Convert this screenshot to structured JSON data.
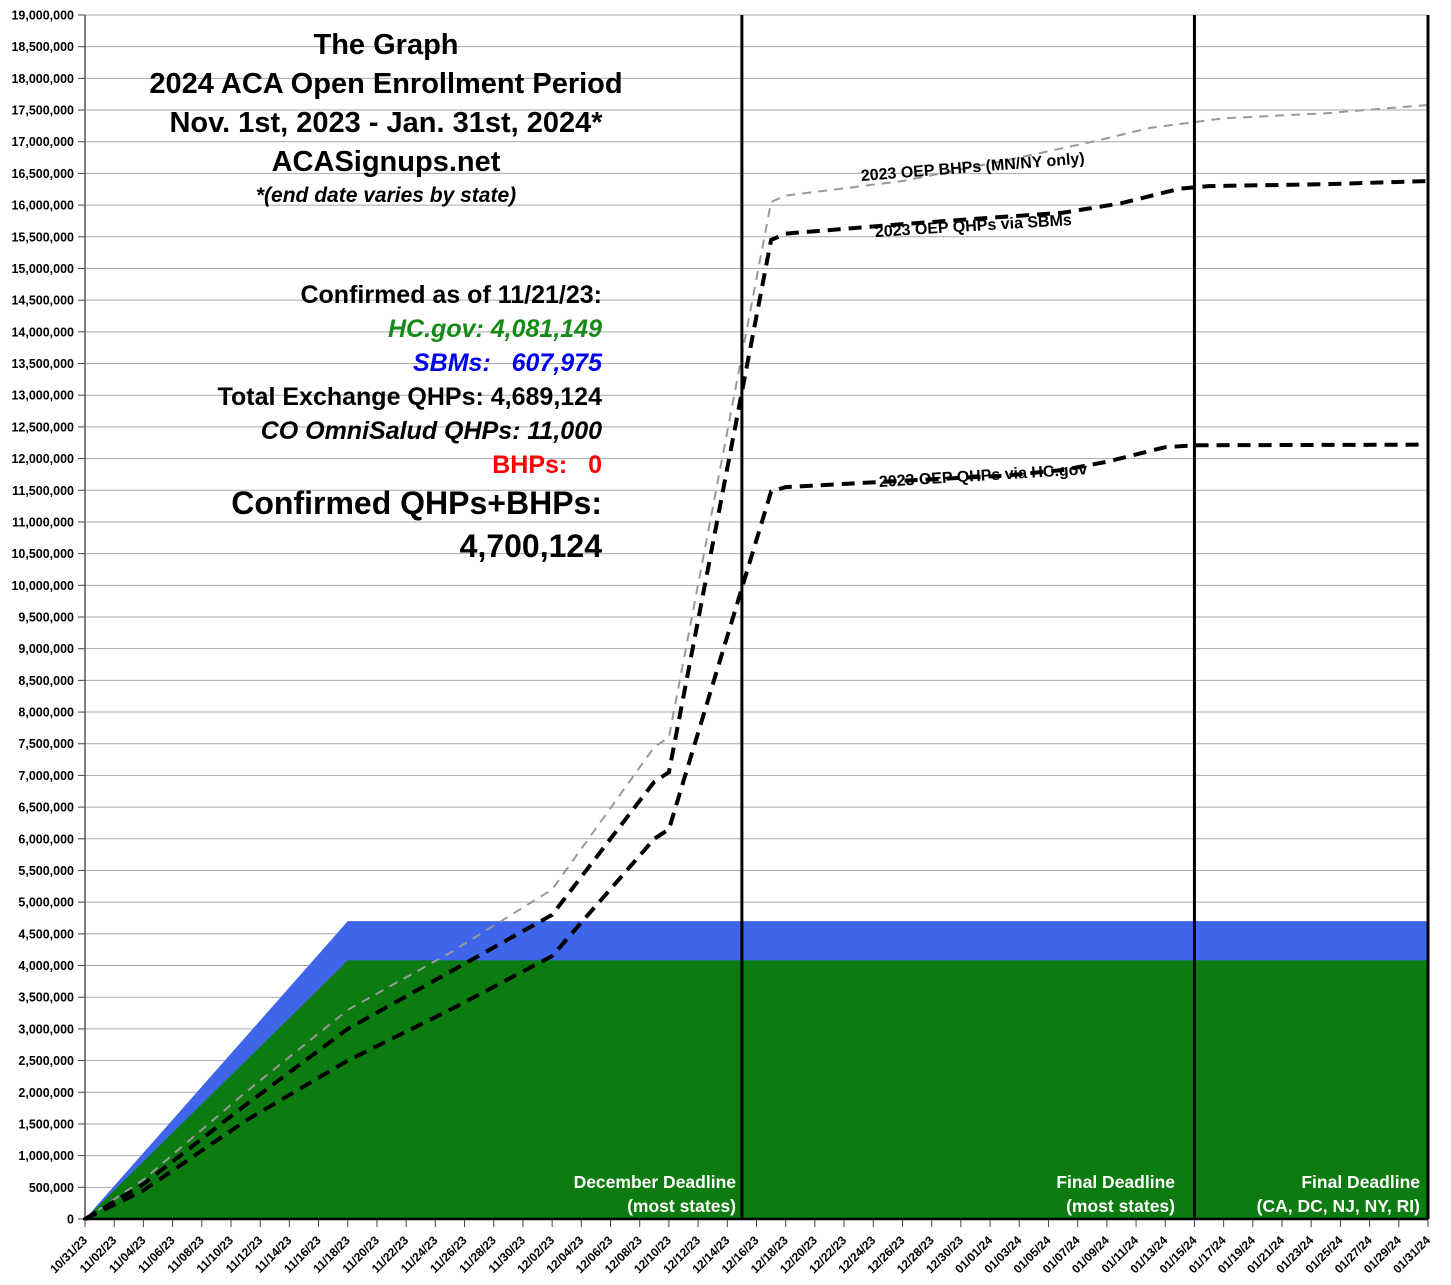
{
  "chart_data": {
    "type": "area",
    "title": "The Graph",
    "subtitle1": "2024 ACA Open Enrollment Period",
    "subtitle2": "Nov. 1st, 2023 - Jan. 31st, 2024*",
    "source": "ACASignups.net",
    "footnote": "*(end date varies by state)",
    "stats": {
      "confirmed_as_of": "Confirmed as of 11/21/23:",
      "hcgov": "HC.gov: 4,081,149",
      "sbms": "SBMs:   607,975",
      "total_qhps": "Total Exchange QHPs: 4,689,124",
      "omnisalud": "CO OmniSalud QHPs: 11,000",
      "bhps": "BHPs:   0",
      "confirmed_total_label": "Confirmed QHPs+BHPs:",
      "confirmed_total_value": "4,700,124"
    },
    "x_axis": {
      "tick_labels": [
        "10/31/23",
        "11/02/23",
        "11/04/23",
        "11/06/23",
        "11/08/23",
        "11/10/23",
        "11/12/23",
        "11/14/23",
        "11/16/23",
        "11/18/23",
        "11/20/23",
        "11/22/23",
        "11/24/23",
        "11/26/23",
        "11/28/23",
        "11/30/23",
        "12/02/23",
        "12/04/23",
        "12/06/23",
        "12/08/23",
        "12/10/23",
        "12/12/23",
        "12/14/23",
        "12/16/23",
        "12/18/23",
        "12/20/23",
        "12/22/23",
        "12/24/23",
        "12/26/23",
        "12/28/23",
        "12/30/23",
        "01/01/24",
        "01/03/24",
        "01/05/24",
        "01/07/24",
        "01/09/24",
        "01/11/24",
        "01/13/24",
        "01/15/24",
        "01/17/24",
        "01/19/24",
        "01/21/24",
        "01/23/24",
        "01/25/24",
        "01/27/24",
        "01/29/24",
        "01/31/24"
      ]
    },
    "y_axis": {
      "min": 0,
      "max": 19000000,
      "step": 500000,
      "tick_labels": [
        "19,000,000",
        "18,500,000",
        "18,000,000",
        "17,500,000",
        "17,000,000",
        "16,500,000",
        "16,000,000",
        "15,500,000",
        "15,000,000",
        "14,500,000",
        "14,000,000",
        "13,500,000",
        "13,000,000",
        "12,500,000",
        "12,000,000",
        "11,500,000",
        "11,000,000",
        "10,500,000",
        "10,000,000",
        "9,500,000",
        "9,000,000",
        "8,500,000",
        "8,000,000",
        "7,500,000",
        "7,000,000",
        "6,500,000",
        "6,000,000",
        "5,500,000",
        "5,000,000",
        "4,500,000",
        "4,000,000",
        "3,500,000",
        "3,000,000",
        "2,500,000",
        "2,000,000",
        "1,500,000",
        "1,000,000",
        "500,000",
        "0"
      ],
      "grid": true
    },
    "series": [
      {
        "name": "2024-total-confirmed-qhps-area",
        "style": "area",
        "color": "#3f66ea",
        "points": [
          [
            "10/31/23",
            0
          ],
          [
            "11/18/23",
            4700124
          ],
          [
            "01/31/24",
            4700124
          ]
        ]
      },
      {
        "name": "2024-hcgov-confirmed-qhps-area",
        "style": "area",
        "color": "#0d7c10",
        "points": [
          [
            "10/31/23",
            0
          ],
          [
            "11/18/23",
            4081149
          ],
          [
            "01/31/24",
            4081149
          ]
        ]
      },
      {
        "name": "2023-oep-bhps",
        "label": "2023 OEP BHPs (MN/NY only)",
        "style": "dashed",
        "color": "#999999",
        "width": 2,
        "dash": "9 7",
        "points": [
          [
            "10/31/23",
            0
          ],
          [
            "11/04/23",
            620000
          ],
          [
            "11/11/23",
            2000000
          ],
          [
            "11/18/23",
            3300000
          ],
          [
            "11/25/23",
            4200000
          ],
          [
            "12/02/23",
            5200000
          ],
          [
            "12/09/23",
            7450000
          ],
          [
            "12/10/23",
            7600000
          ],
          [
            "12/17/23",
            16050000
          ],
          [
            "12/18/23",
            16150000
          ],
          [
            "12/26/23",
            16380000
          ],
          [
            "01/02/24",
            16700000
          ],
          [
            "01/08/24",
            17000000
          ],
          [
            "01/12/24",
            17220000
          ],
          [
            "01/15/24",
            17310000
          ],
          [
            "01/17/24",
            17370000
          ],
          [
            "01/24/24",
            17450000
          ],
          [
            "01/31/24",
            17580000
          ]
        ]
      },
      {
        "name": "2023-oep-qhps-sbms",
        "label": "2023 OEP QHPs via SBMs",
        "style": "dashed",
        "color": "#000000",
        "width": 4,
        "dash": "13 8",
        "points": [
          [
            "10/31/23",
            0
          ],
          [
            "11/04/23",
            550000
          ],
          [
            "11/11/23",
            1800000
          ],
          [
            "11/18/23",
            3000000
          ],
          [
            "11/25/23",
            3900000
          ],
          [
            "12/02/23",
            4800000
          ],
          [
            "12/09/23",
            6900000
          ],
          [
            "12/10/23",
            7050000
          ],
          [
            "12/17/23",
            15450000
          ],
          [
            "12/18/23",
            15550000
          ],
          [
            "12/26/23",
            15700000
          ],
          [
            "01/01/24",
            15800000
          ],
          [
            "01/06/24",
            15880000
          ],
          [
            "01/10/24",
            16030000
          ],
          [
            "01/14/24",
            16260000
          ],
          [
            "01/16/24",
            16300000
          ],
          [
            "01/24/24",
            16330000
          ],
          [
            "01/31/24",
            16380000
          ]
        ]
      },
      {
        "name": "2023-oep-qhps-hcgov",
        "label": "2023 OEP QHPs via HC.gov",
        "style": "dashed",
        "color": "#000000",
        "width": 4,
        "dash": "13 8",
        "points": [
          [
            "10/31/23",
            0
          ],
          [
            "11/04/23",
            450000
          ],
          [
            "11/11/23",
            1550000
          ],
          [
            "11/18/23",
            2500000
          ],
          [
            "11/25/23",
            3300000
          ],
          [
            "12/02/23",
            4150000
          ],
          [
            "12/09/23",
            6000000
          ],
          [
            "12/10/23",
            6150000
          ],
          [
            "12/17/23",
            11480000
          ],
          [
            "12/18/23",
            11550000
          ],
          [
            "12/26/23",
            11650000
          ],
          [
            "01/02/24",
            11730000
          ],
          [
            "01/06/24",
            11820000
          ],
          [
            "01/09/24",
            11950000
          ],
          [
            "01/13/24",
            12180000
          ],
          [
            "01/15/24",
            12210000
          ],
          [
            "01/31/24",
            12220000
          ]
        ]
      }
    ],
    "deadlines": [
      {
        "date": "12/15/23",
        "line1": "December Deadline",
        "line2": "(most states)"
      },
      {
        "date": "01/15/24",
        "line1": "Final Deadline",
        "line2": "(most states)"
      },
      {
        "date": "01/31/24",
        "line1": "Final Deadline",
        "line2": "(CA, DC, NJ, NY, RI)"
      }
    ],
    "colors": {
      "hcgov_area": "#0d7c10",
      "sbm_area": "#3f66ea",
      "hcgov_text": "#168a16",
      "sbm_text": "#0000ee",
      "bhp_text": "#ff0000",
      "gridline": "#a9a9a9",
      "deadline_line": "#000000"
    }
  }
}
